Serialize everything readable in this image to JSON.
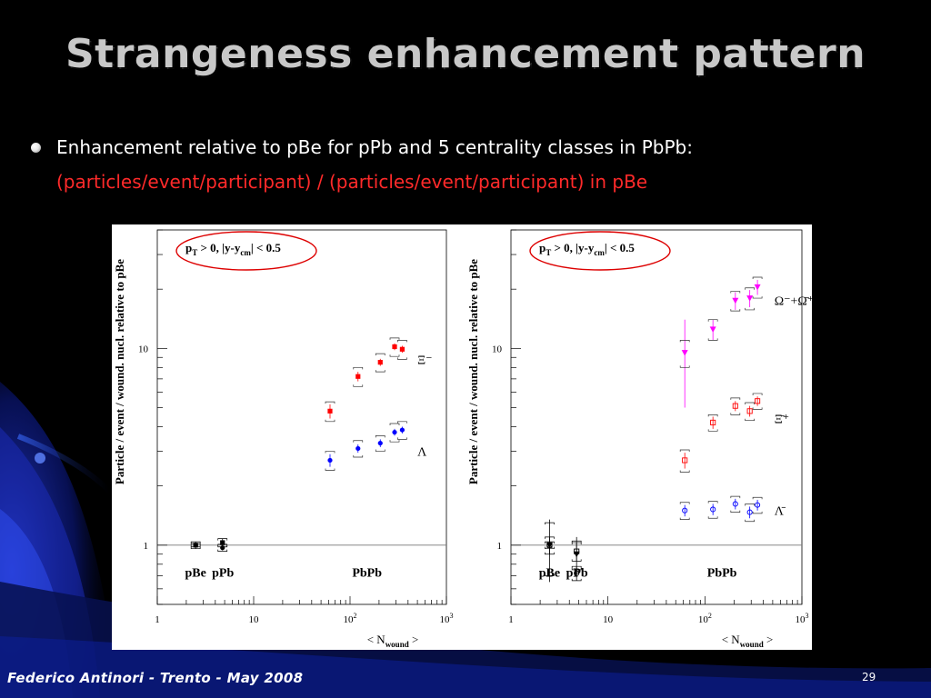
{
  "slide": {
    "title": "Strangeness enhancement pattern",
    "bullet": "Enhancement relative to pBe for pPb and 5 centrality classes in PbPb:",
    "bullet_sub": "(particles/event/participant) / (particles/event/participant) in pBe",
    "footer": "Federico Antinori - Trento - May 2008",
    "page_number": "29"
  },
  "chart_data": [
    {
      "type": "scatter",
      "xscale": "log",
      "yscale": "log",
      "xlim": [
        1,
        1000
      ],
      "ylim": [
        0.5,
        40
      ],
      "x_ticks": [
        {
          "value": 1,
          "label": "1"
        },
        {
          "value": 10,
          "label": "10"
        },
        {
          "value": 100,
          "label": "10",
          "exp": "2"
        },
        {
          "value": 1000,
          "label": "10",
          "exp": "3"
        }
      ],
      "y_ticks": [
        {
          "value": 1,
          "label": "1"
        },
        {
          "value": 10,
          "label": "10"
        }
      ],
      "xlabel": {
        "pre": "< N",
        "sub": "wound",
        "post": " >"
      },
      "ylabel": "Particle / event / wound. nucl. relative to pBe",
      "cut_label": {
        "pt": "p",
        "pt_sub": "T",
        "rest1": " > 0,   |y-y",
        "cm_sub": "cm",
        "rest2": "| < 0.5"
      },
      "region_labels": [
        {
          "text": "pBe",
          "x": 2.5,
          "y": 0.72
        },
        {
          "text": "pPb",
          "x": 4.8,
          "y": 0.72
        },
        {
          "text": "PbPb",
          "x": 150,
          "y": 0.72
        }
      ],
      "reference_line": 1,
      "series": [
        {
          "name": "Ξ⁻",
          "color": "#ff0000",
          "marker": "square-filled",
          "label_x": 500,
          "label_y": 8.8,
          "points": [
            {
              "x": 62,
              "y": 4.8,
              "err": 0.4,
              "sys": 0.55
            },
            {
              "x": 121,
              "y": 7.2,
              "err": 0.4,
              "sys": 0.8
            },
            {
              "x": 206,
              "y": 8.5,
              "err": 0.35,
              "sys": 0.9
            },
            {
              "x": 290,
              "y": 10.2,
              "err": 0.4,
              "sys": 1.1
            },
            {
              "x": 348,
              "y": 9.9,
              "err": 0.4,
              "sys": 1.1
            }
          ]
        },
        {
          "name": "Λ",
          "color": "#0000ff",
          "marker": "circle-filled",
          "label_x": 500,
          "label_y": 3.0,
          "points": [
            {
              "x": 62,
              "y": 2.7,
              "err": 0.2,
              "sys": 0.3
            },
            {
              "x": 121,
              "y": 3.1,
              "err": 0.15,
              "sys": 0.3
            },
            {
              "x": 206,
              "y": 3.3,
              "err": 0.15,
              "sys": 0.3
            },
            {
              "x": 290,
              "y": 3.75,
              "err": 0.15,
              "sys": 0.4
            },
            {
              "x": 348,
              "y": 3.85,
              "err": 0.15,
              "sys": 0.4
            }
          ]
        },
        {
          "name": "pBe/pPb Ξ⁻",
          "color": "#000000",
          "marker": "square-filled",
          "points": [
            {
              "x": 2.5,
              "y": 1.0,
              "err": 0.04,
              "sys": 0.04
            },
            {
              "x": 4.75,
              "y": 1.03,
              "err": 0.05,
              "sys": 0.05
            }
          ]
        },
        {
          "name": "pBe/pPb Λ",
          "color": "#000000",
          "marker": "circle-filled",
          "points": [
            {
              "x": 2.5,
              "y": 1.0,
              "err": 0.02,
              "sys": 0.02
            },
            {
              "x": 4.75,
              "y": 0.97,
              "err": 0.03,
              "sys": 0.04
            }
          ]
        }
      ]
    },
    {
      "type": "scatter",
      "xscale": "log",
      "yscale": "log",
      "xlim": [
        1,
        1000
      ],
      "ylim": [
        0.5,
        40
      ],
      "x_ticks": [
        {
          "value": 1,
          "label": "1"
        },
        {
          "value": 10,
          "label": "10"
        },
        {
          "value": 100,
          "label": "10",
          "exp": "2"
        },
        {
          "value": 1000,
          "label": "10",
          "exp": "3"
        }
      ],
      "y_ticks": [
        {
          "value": 1,
          "label": "1"
        },
        {
          "value": 10,
          "label": "10"
        }
      ],
      "xlabel": {
        "pre": "< N",
        "sub": "wound",
        "post": " >"
      },
      "ylabel": "Particle / event / wound. nucl. relative to pBe",
      "cut_label": {
        "pt": "p",
        "pt_sub": "T",
        "rest1": " > 0,   |y-y",
        "cm_sub": "cm",
        "rest2": "| < 0.5"
      },
      "region_labels": [
        {
          "text": "pBe",
          "x": 2.5,
          "y": 0.72
        },
        {
          "text": "pPb",
          "x": 4.8,
          "y": 0.72
        },
        {
          "text": "PbPb",
          "x": 150,
          "y": 0.72
        }
      ],
      "reference_line": 1,
      "series": [
        {
          "name": "Ω⁻+Ω̄⁺",
          "color": "#ff00ff",
          "marker": "triangle-down-filled",
          "label_x": 520,
          "label_y": 17.5,
          "points": [
            {
              "x": 62,
              "y": 9.5,
              "err": 4.5,
              "sys": 1.5
            },
            {
              "x": 121,
              "y": 12.5,
              "err": 1.5,
              "sys": 1.5
            },
            {
              "x": 206,
              "y": 17.5,
              "err": 1.8,
              "sys": 2.0
            },
            {
              "x": 290,
              "y": 18.0,
              "err": 1.8,
              "sys": 2.3
            },
            {
              "x": 348,
              "y": 20.5,
              "err": 1.8,
              "sys": 2.5
            }
          ]
        },
        {
          "name": "Ξ̄⁺",
          "color": "#ff0000",
          "marker": "square-open",
          "label_x": 520,
          "label_y": 4.4,
          "points": [
            {
              "x": 62,
              "y": 2.7,
              "err": 0.25,
              "sys": 0.35
            },
            {
              "x": 121,
              "y": 4.2,
              "err": 0.3,
              "sys": 0.4
            },
            {
              "x": 206,
              "y": 5.1,
              "err": 0.3,
              "sys": 0.5
            },
            {
              "x": 290,
              "y": 4.8,
              "err": 0.3,
              "sys": 0.5
            },
            {
              "x": 348,
              "y": 5.4,
              "err": 0.3,
              "sys": 0.5
            }
          ]
        },
        {
          "name": "Λ̄",
          "color": "#0000ff",
          "marker": "circle-open",
          "label_x": 520,
          "label_y": 1.5,
          "points": [
            {
              "x": 62,
              "y": 1.5,
              "err": 0.1,
              "sys": 0.15
            },
            {
              "x": 121,
              "y": 1.52,
              "err": 0.1,
              "sys": 0.15
            },
            {
              "x": 206,
              "y": 1.62,
              "err": 0.1,
              "sys": 0.15
            },
            {
              "x": 290,
              "y": 1.47,
              "err": 0.1,
              "sys": 0.15
            },
            {
              "x": 348,
              "y": 1.6,
              "err": 0.1,
              "sys": 0.15
            }
          ]
        },
        {
          "name": "pBe/pPb Ω",
          "color": "#000000",
          "marker": "triangle-down-filled",
          "points": [
            {
              "x": 2.5,
              "y": 1.0,
              "err": 0.35,
              "sys": 0.3
            },
            {
              "x": 4.75,
              "y": 0.9,
              "err": 0.2,
              "sys": 0.15
            }
          ]
        },
        {
          "name": "pBe/pPb Ξ̄",
          "color": "#000000",
          "marker": "square-open",
          "points": [
            {
              "x": 2.5,
              "y": 1.0,
              "err": 0.1,
              "sys": 0.1
            },
            {
              "x": 4.75,
              "y": 0.93,
              "err": 0.1,
              "sys": 0.1
            }
          ]
        },
        {
          "name": "pBe/pPb Λ̄",
          "color": "#000000",
          "marker": "circle-open",
          "points": [
            {
              "x": 2.5,
              "y": 1.0,
              "err": 0.04,
              "sys": 0.04
            },
            {
              "x": 4.75,
              "y": 0.72,
              "err": 0.06,
              "sys": 0.06
            }
          ]
        }
      ]
    }
  ]
}
